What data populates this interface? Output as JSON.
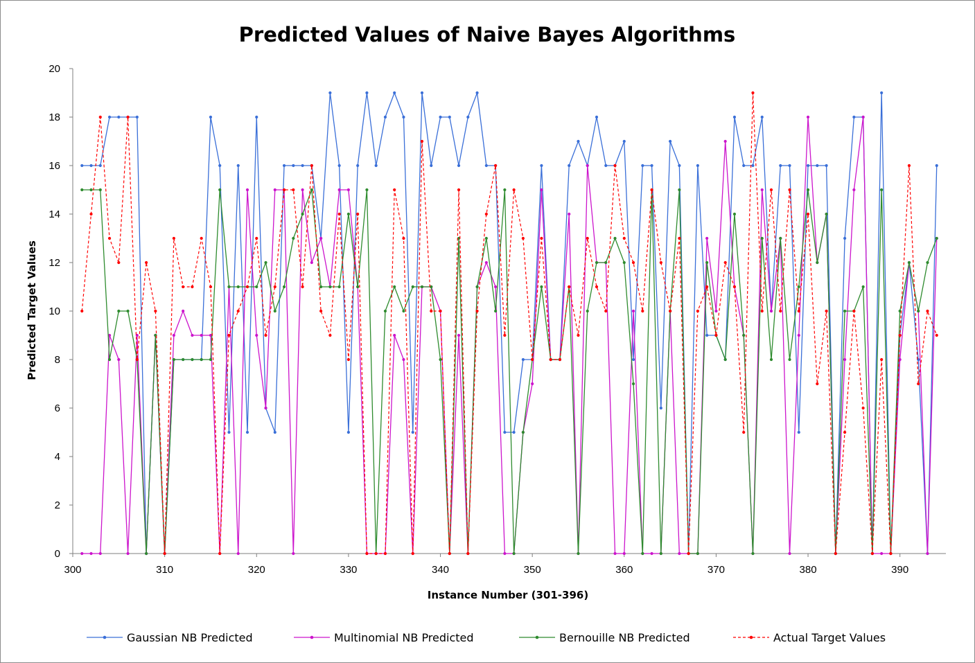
{
  "chart_data": {
    "type": "line",
    "title": "Predicted Values of Naive Bayes Algorithms",
    "xlabel": "Instance Number (301-396)",
    "ylabel": "Predicted Target Values",
    "xlim": [
      300,
      395
    ],
    "ylim": [
      0,
      20
    ],
    "x_ticks": [
      300,
      310,
      320,
      330,
      340,
      350,
      360,
      370,
      380,
      390
    ],
    "y_ticks": [
      0,
      2,
      4,
      6,
      8,
      10,
      12,
      14,
      16,
      18,
      20
    ],
    "grid": false,
    "legend_position": "bottom",
    "x": [
      301,
      302,
      303,
      304,
      305,
      306,
      307,
      308,
      309,
      310,
      311,
      312,
      313,
      314,
      315,
      316,
      317,
      318,
      319,
      320,
      321,
      322,
      323,
      324,
      325,
      326,
      327,
      328,
      329,
      330,
      331,
      332,
      333,
      334,
      335,
      336,
      337,
      338,
      339,
      340,
      341,
      342,
      343,
      344,
      345,
      346,
      347,
      348,
      349,
      350,
      351,
      352,
      353,
      354,
      355,
      356,
      357,
      358,
      359,
      360,
      361,
      362,
      363,
      364,
      365,
      366,
      367,
      368,
      369,
      370,
      371,
      372,
      373,
      374,
      375,
      376,
      377,
      378,
      379,
      380,
      381,
      382,
      383,
      384,
      385,
      386,
      387,
      388,
      389,
      390,
      391,
      392,
      393,
      394
    ],
    "series": [
      {
        "name": "Gaussian NB Predicted",
        "color": "#3a6fd8",
        "dashed": false,
        "values": [
          16,
          16,
          16,
          18,
          18,
          18,
          18,
          0,
          9,
          0,
          8,
          8,
          8,
          8,
          18,
          16,
          5,
          16,
          5,
          18,
          6,
          5,
          16,
          16,
          16,
          16,
          13,
          19,
          16,
          5,
          16,
          19,
          16,
          18,
          19,
          18,
          5,
          19,
          16,
          18,
          18,
          16,
          18,
          19,
          16,
          16,
          5,
          5,
          8,
          8,
          16,
          8,
          8,
          16,
          17,
          16,
          18,
          16,
          16,
          17,
          8,
          16,
          16,
          6,
          17,
          16,
          0,
          16,
          9,
          9,
          8,
          18,
          16,
          16,
          18,
          10,
          16,
          16,
          5,
          16,
          16,
          16,
          0,
          13,
          18,
          18,
          0,
          19,
          0,
          9,
          12,
          8,
          0,
          16
        ]
      },
      {
        "name": "Multinomial NB Predicted",
        "color": "#cc14cc",
        "dashed": false,
        "values": [
          0,
          0,
          0,
          9,
          8,
          0,
          9,
          0,
          9,
          0,
          9,
          10,
          9,
          9,
          9,
          0,
          11,
          0,
          15,
          9,
          6,
          15,
          15,
          0,
          15,
          12,
          13,
          11,
          15,
          15,
          11,
          0,
          0,
          0,
          9,
          8,
          0,
          11,
          11,
          10,
          0,
          9,
          0,
          11,
          12,
          11,
          0,
          0,
          5,
          7,
          15,
          8,
          8,
          14,
          0,
          16,
          12,
          12,
          0,
          0,
          10,
          0,
          0,
          0,
          10,
          0,
          0,
          0,
          13,
          10,
          17,
          11,
          9,
          0,
          15,
          10,
          13,
          0,
          9,
          18,
          12,
          14,
          0,
          8,
          15,
          18,
          0,
          0,
          0,
          8,
          12,
          10,
          0,
          13
        ]
      },
      {
        "name": "Bernouille NB Predicted",
        "color": "#2e8b2e",
        "dashed": false,
        "values": [
          15,
          15,
          15,
          8,
          10,
          10,
          8,
          0,
          9,
          0,
          8,
          8,
          8,
          8,
          8,
          15,
          11,
          11,
          11,
          11,
          12,
          10,
          11,
          13,
          14,
          15,
          11,
          11,
          11,
          14,
          11,
          15,
          0,
          10,
          11,
          10,
          11,
          11,
          11,
          8,
          0,
          13,
          0,
          11,
          13,
          10,
          15,
          0,
          5,
          8,
          11,
          8,
          8,
          11,
          0,
          10,
          12,
          12,
          13,
          12,
          7,
          0,
          15,
          0,
          10,
          15,
          0,
          0,
          12,
          9,
          8,
          14,
          9,
          0,
          13,
          8,
          13,
          8,
          11,
          15,
          12,
          14,
          0,
          10,
          10,
          11,
          0,
          15,
          0,
          10,
          12,
          10,
          12,
          13
        ]
      },
      {
        "name": "Actual Target Values",
        "color": "#ff0000",
        "dashed": true,
        "values": [
          10,
          14,
          18,
          13,
          12,
          18,
          8,
          12,
          10,
          0,
          13,
          11,
          11,
          13,
          11,
          0,
          9,
          10,
          11,
          13,
          9,
          11,
          15,
          15,
          11,
          16,
          10,
          9,
          14,
          8,
          14,
          0,
          0,
          0,
          15,
          13,
          0,
          17,
          10,
          10,
          0,
          15,
          0,
          10,
          14,
          16,
          9,
          15,
          13,
          8,
          13,
          8,
          8,
          11,
          9,
          13,
          11,
          10,
          16,
          13,
          12,
          10,
          15,
          12,
          10,
          13,
          0,
          10,
          11,
          9,
          12,
          11,
          5,
          19,
          10,
          15,
          10,
          15,
          10,
          14,
          7,
          10,
          0,
          5,
          10,
          6,
          0,
          8,
          0,
          9,
          16,
          7,
          10,
          9
        ]
      }
    ]
  }
}
